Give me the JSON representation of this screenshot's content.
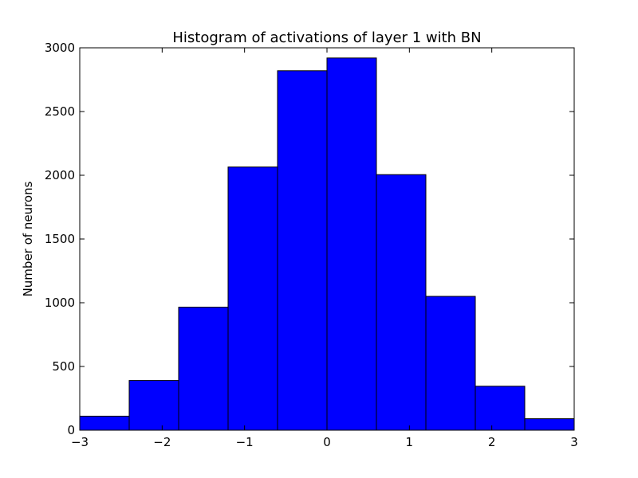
{
  "chart_data": {
    "type": "bar",
    "title": "Histogram of activations of layer 1  with BN",
    "xlabel": "",
    "ylabel": "Number of neurons",
    "bin_edges": [
      -3,
      -2.4,
      -1.8,
      -1.2,
      -0.6,
      0,
      0.6,
      1.2,
      1.8,
      2.4,
      3
    ],
    "values": [
      110,
      390,
      965,
      2065,
      2820,
      2920,
      2005,
      1050,
      345,
      90
    ],
    "xlim": [
      -3,
      3
    ],
    "ylim": [
      0,
      3000
    ],
    "x_ticks": [
      -3,
      -2,
      -1,
      0,
      1,
      2,
      3
    ],
    "x_tick_labels": [
      "−3",
      "−2",
      "−1",
      "0",
      "1",
      "2",
      "3"
    ],
    "y_ticks": [
      0,
      500,
      1000,
      1500,
      2000,
      2500,
      3000
    ],
    "y_tick_labels": [
      "0",
      "500",
      "1000",
      "1500",
      "2000",
      "2500",
      "3000"
    ],
    "grid": false,
    "bar_color": "#0000ff",
    "edge_color": "#000000"
  }
}
